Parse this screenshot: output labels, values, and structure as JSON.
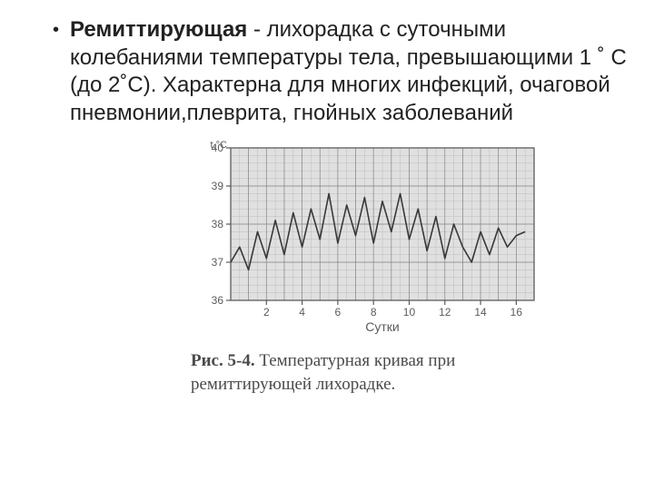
{
  "text": {
    "term": "Ремиттирующая",
    "rest": " - лихорадка с суточными колебаниями температуры тела, превышающими 1 ˚ С (до 2˚С). Характерна для многих инфекций, очаговой пневмонии,плеврита, гнойных заболеваний"
  },
  "chart": {
    "type": "line",
    "y_unit_label": "t,°C",
    "ylim": [
      36,
      40
    ],
    "yticks": [
      36,
      37,
      38,
      39,
      40
    ],
    "ytick_fontsize": 12,
    "xlabel": "Сутки",
    "xlabel_fontsize": 14,
    "xticks": [
      2,
      4,
      6,
      8,
      10,
      12,
      14,
      16
    ],
    "xtick_fontsize": 12,
    "x_range": [
      0,
      17
    ],
    "plot_bg": "#f1f1f1",
    "minor_grid_color": "#c8c8c8",
    "major_grid_color": "#888888",
    "axis_color": "#555555",
    "line_color": "#2b2b2b",
    "line_width": 1.6,
    "font_color": "#555555",
    "series": [
      37.0,
      37.4,
      36.8,
      37.8,
      37.1,
      38.1,
      37.2,
      38.3,
      37.4,
      38.4,
      37.6,
      38.8,
      37.5,
      38.5,
      37.7,
      38.7,
      37.5,
      38.6,
      37.8,
      38.8,
      37.6,
      38.4,
      37.3,
      38.2,
      37.1,
      38.0,
      37.4,
      37.0,
      37.8,
      37.2,
      37.9,
      37.4,
      37.7,
      37.8
    ],
    "series_x_start": 0,
    "series_x_step": 0.5
  },
  "caption": {
    "fignum": "Рис. 5-4.",
    "text": " Температурная кривая при ремиттирующей лихорадке."
  }
}
